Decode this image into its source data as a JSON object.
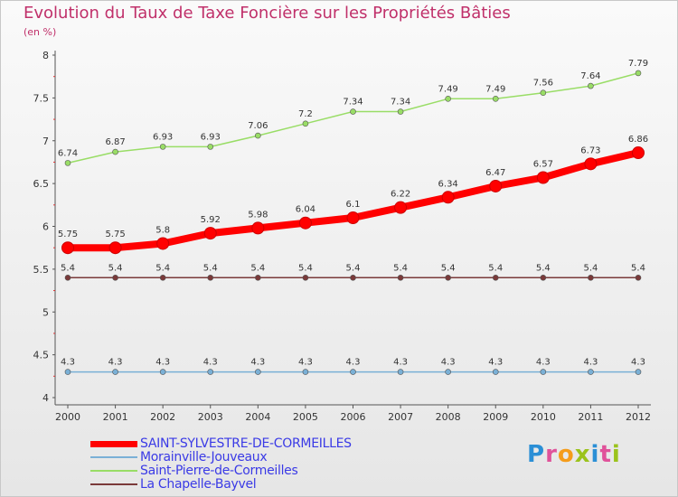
{
  "title": "Evolution du Taux de Taxe Foncière sur les Propriétés Bâties",
  "subtitle": "(en %)",
  "logo": "Proxiti",
  "chart_data": {
    "type": "line",
    "title": "Evolution du Taux de Taxe Foncière sur les Propriétés Bâties",
    "ylabel": "(en %)",
    "xlabel": "",
    "ylim": [
      4,
      8
    ],
    "yticks": [
      "4",
      "4.5",
      "5",
      "5.5",
      "6",
      "6.5",
      "7",
      "7.5",
      "8"
    ],
    "categories": [
      "2000",
      "2001",
      "2002",
      "2003",
      "2004",
      "2005",
      "2006",
      "2007",
      "2008",
      "2009",
      "2010",
      "2011",
      "2012"
    ],
    "series": [
      {
        "name": "SAINT-SYLVESTRE-DE-CORMEILLES",
        "color": "#ff0000",
        "values": [
          5.75,
          5.75,
          5.8,
          5.92,
          5.98,
          6.04,
          6.1,
          6.22,
          6.34,
          6.47,
          6.57,
          6.73,
          6.86
        ],
        "labels": [
          "5.75",
          "5.75",
          "5.8",
          "5.92",
          "5.98",
          "6.04",
          "6.1",
          "6.22",
          "6.34",
          "6.47",
          "6.57",
          "6.73",
          "6.86"
        ]
      },
      {
        "name": "Morainville-Jouveaux",
        "color": "#7ab0d6",
        "values": [
          4.3,
          4.3,
          4.3,
          4.3,
          4.3,
          4.3,
          4.3,
          4.3,
          4.3,
          4.3,
          4.3,
          4.3,
          4.3
        ],
        "labels": [
          "4.3",
          "4.3",
          "4.3",
          "4.3",
          "4.3",
          "4.3",
          "4.3",
          "4.3",
          "4.3",
          "4.3",
          "4.3",
          "4.3",
          "4.3"
        ]
      },
      {
        "name": "Saint-Pierre-de-Cormeilles",
        "color": "#99dd66",
        "values": [
          6.74,
          6.87,
          6.93,
          6.93,
          7.06,
          7.2,
          7.34,
          7.34,
          7.49,
          7.49,
          7.56,
          7.64,
          7.79
        ],
        "labels": [
          "6.74",
          "6.87",
          "6.93",
          "6.93",
          "7.06",
          "7.2",
          "7.34",
          "7.34",
          "7.49",
          "7.49",
          "7.56",
          "7.64",
          "7.79"
        ]
      },
      {
        "name": "La Chapelle-Bayvel",
        "color": "#7a3a3a",
        "values": [
          5.4,
          5.4,
          5.4,
          5.4,
          5.4,
          5.4,
          5.4,
          5.4,
          5.4,
          5.4,
          5.4,
          5.4,
          5.4
        ],
        "labels": [
          "5.4",
          "5.4",
          "5.4",
          "5.4",
          "5.4",
          "5.4",
          "5.4",
          "5.4",
          "5.4",
          "5.4",
          "5.4",
          "5.4",
          "5.4"
        ]
      }
    ],
    "legend": "bottom-left"
  }
}
